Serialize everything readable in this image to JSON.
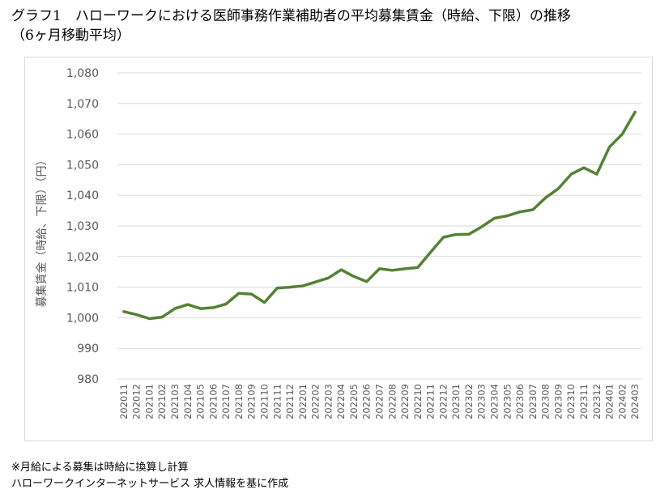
{
  "title": "グラフ1　ハローワークにおける医師事務作業補助者の平均募集賃金（時給、下限）の推移\n（6ヶ月移動平均）",
  "notes": [
    "※月給による募集は時給に換算し計算",
    "ハローワークインターネットサービス 求人情報を基に作成"
  ],
  "colors": {
    "line": "#548235",
    "grid": "#d9d9d9",
    "tick": "#595959"
  },
  "chart_data": {
    "type": "line",
    "title": "グラフ1　ハローワークにおける医師事務作業補助者の平均募集賃金（時給、下限）の推移（6ヶ月移動平均）",
    "ylabel": "募集賃金（時給、下限）（円）",
    "xlabel": "",
    "ylim": [
      980,
      1080
    ],
    "yticks": [
      "980",
      "990",
      "1,000",
      "1,010",
      "1,020",
      "1,030",
      "1,040",
      "1,050",
      "1,060",
      "1,070",
      "1,080"
    ],
    "grid": true,
    "legend": "none",
    "categories": [
      "202011",
      "202012",
      "202101",
      "202102",
      "202103",
      "202104",
      "202105",
      "202106",
      "202107",
      "202108",
      "202109",
      "202110",
      "202111",
      "202112",
      "202201",
      "202202",
      "202203",
      "202204",
      "202205",
      "202206",
      "202207",
      "202208",
      "202209",
      "202210",
      "202211",
      "202212",
      "202301",
      "202302",
      "202303",
      "202304",
      "202305",
      "202306",
      "202307",
      "202308",
      "202309",
      "202310",
      "202311",
      "202312",
      "202401",
      "202402",
      "202403"
    ],
    "values": [
      1002,
      1001,
      999.7,
      1000.2,
      1003,
      1004.3,
      1003,
      1003.3,
      1004.5,
      1008,
      1007.7,
      1005,
      1009.7,
      1010,
      1010.4,
      1011.7,
      1013,
      1015.7,
      1013.5,
      1011.8,
      1016,
      1015.5,
      1016,
      1016.4,
      1021.4,
      1026.3,
      1027.2,
      1027.3,
      1029.7,
      1032.5,
      1033.3,
      1034.6,
      1035.3,
      1039.2,
      1042.2,
      1046.9,
      1049,
      1046.9,
      1055.8,
      1060,
      1067.2
    ]
  }
}
